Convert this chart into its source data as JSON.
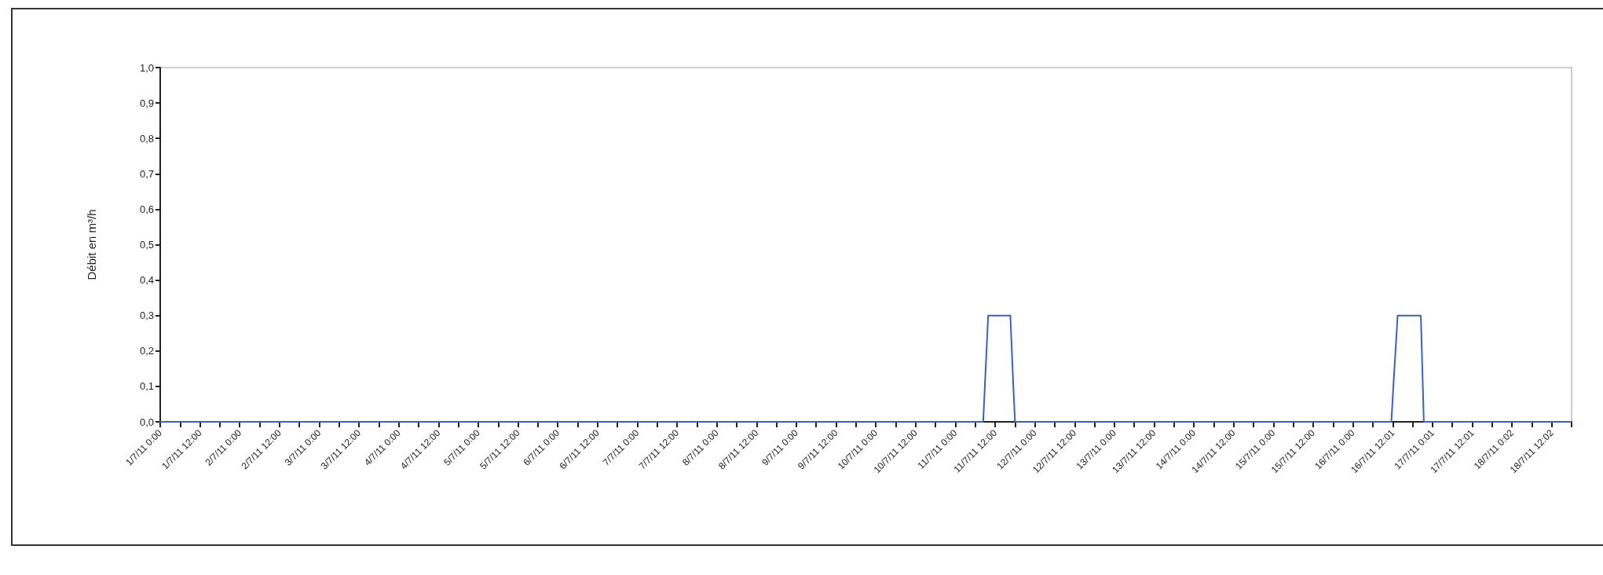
{
  "chart_data": {
    "type": "line",
    "ylabel": "Débit en m³/h",
    "x": [
      "--07-01T00:00",
      "--07-11T08:24",
      "--07-11T09:54",
      "--07-11T16:36",
      "--07-11T17:30",
      "--07-11T18:00",
      "--07-16T11:36",
      "--07-16T12:12",
      "--07-16T13:30",
      "--07-16T20:30",
      "--07-16T21:24",
      "--07-18T18:00"
    ],
    "series": [
      {
        "color": "#3a5fc8",
        "values": [
          0,
          0,
          0.3,
          0.3,
          0.1,
          0,
          0,
          0.1,
          0.3,
          0.3,
          0,
          0
        ]
      }
    ],
    "xlim": [
      "--07-01T00:00",
      "--07-18T18:00"
    ],
    "xticks": [
      {
        "value": "--07-01T00:00",
        "label": "1/7/11 0:00"
      },
      {
        "value": "--07-01T06:00",
        "label": null
      },
      {
        "value": "--07-01T12:00",
        "label": "1/7/11 12:00"
      },
      {
        "value": "--07-01T18:00",
        "label": null
      },
      {
        "value": "--07-02T00:00",
        "label": "2/7/11 0:00"
      },
      {
        "value": "--07-02T06:00",
        "label": null
      },
      {
        "value": "--07-02T12:00",
        "label": "2/7/11 12:00"
      },
      {
        "value": "--07-02T18:00",
        "label": null
      },
      {
        "value": "--07-03T00:00",
        "label": "3/7/11 0:00"
      },
      {
        "value": "--07-03T06:00",
        "label": null
      },
      {
        "value": "--07-03T12:00",
        "label": "3/7/11 12:00"
      },
      {
        "value": "--07-03T18:00",
        "label": null
      },
      {
        "value": "--07-04T00:00",
        "label": "4/7/11 0:00"
      },
      {
        "value": "--07-04T06:00",
        "label": null
      },
      {
        "value": "--07-04T12:00",
        "label": "4/7/11 12:00"
      },
      {
        "value": "--07-04T18:00",
        "label": null
      },
      {
        "value": "--07-05T00:00",
        "label": "5/7/11 0:00"
      },
      {
        "value": "--07-05T06:00",
        "label": null
      },
      {
        "value": "--07-05T12:00",
        "label": "5/7/11 12:00"
      },
      {
        "value": "--07-05T18:00",
        "label": null
      },
      {
        "value": "--07-06T00:00",
        "label": "6/7/11 0:00"
      },
      {
        "value": "--07-06T06:00",
        "label": null
      },
      {
        "value": "--07-06T12:00",
        "label": "6/7/11 12:00"
      },
      {
        "value": "--07-06T18:00",
        "label": null
      },
      {
        "value": "--07-07T00:00",
        "label": "7/7/11 0:00"
      },
      {
        "value": "--07-07T06:00",
        "label": null
      },
      {
        "value": "--07-07T12:00",
        "label": "7/7/11 12:00"
      },
      {
        "value": "--07-07T18:00",
        "label": null
      },
      {
        "value": "--07-08T00:00",
        "label": "8/7/11 0:00"
      },
      {
        "value": "--07-08T06:00",
        "label": null
      },
      {
        "value": "--07-08T12:00",
        "label": "8/7/11 12:00"
      },
      {
        "value": "--07-08T18:00",
        "label": null
      },
      {
        "value": "--07-09T00:00",
        "label": "9/7/11 0:00"
      },
      {
        "value": "--07-09T06:00",
        "label": null
      },
      {
        "value": "--07-09T12:00",
        "label": "9/7/11 12:00"
      },
      {
        "value": "--07-09T18:00",
        "label": null
      },
      {
        "value": "--07-10T00:00",
        "label": "10/7/11 0:00"
      },
      {
        "value": "--07-10T06:00",
        "label": null
      },
      {
        "value": "--07-10T12:00",
        "label": "10/7/11 12:00"
      },
      {
        "value": "--07-10T18:00",
        "label": null
      },
      {
        "value": "--07-11T00:00",
        "label": "11/7/11 0:00"
      },
      {
        "value": "--07-11T06:00",
        "label": null
      },
      {
        "value": "--07-11T12:00",
        "label": "11/7/11 12:00"
      },
      {
        "value": "--07-11T18:00",
        "label": null
      },
      {
        "value": "--07-12T00:00",
        "label": "12/7/11 0:00"
      },
      {
        "value": "--07-12T06:00",
        "label": null
      },
      {
        "value": "--07-12T12:00",
        "label": "12/7/11 12:00"
      },
      {
        "value": "--07-12T18:00",
        "label": null
      },
      {
        "value": "--07-13T00:00",
        "label": "13/7/11 0:00"
      },
      {
        "value": "--07-13T06:00",
        "label": null
      },
      {
        "value": "--07-13T12:00",
        "label": "13/7/11 12:00"
      },
      {
        "value": "--07-13T18:00",
        "label": null
      },
      {
        "value": "--07-14T00:00",
        "label": "14/7/11 0:00"
      },
      {
        "value": "--07-14T06:00",
        "label": null
      },
      {
        "value": "--07-14T12:00",
        "label": "14/7/11 12:00"
      },
      {
        "value": "--07-14T18:00",
        "label": null
      },
      {
        "value": "--07-15T00:00",
        "label": "15/7/11 0:00"
      },
      {
        "value": "--07-15T06:00",
        "label": null
      },
      {
        "value": "--07-15T12:00",
        "label": "15/7/11 12:00"
      },
      {
        "value": "--07-15T18:00",
        "label": null
      },
      {
        "value": "--07-16T00:00",
        "label": "16/7/11 0:00"
      },
      {
        "value": "--07-16T06:00",
        "label": null
      },
      {
        "value": "--07-16T12:01",
        "label": "16/7/11 12:01"
      },
      {
        "value": "--07-16T18:00",
        "label": null
      },
      {
        "value": "--07-17T00:01",
        "label": "17/7/11 0:01"
      },
      {
        "value": "--07-17T06:00",
        "label": null
      },
      {
        "value": "--07-17T12:01",
        "label": "17/7/11 12:01"
      },
      {
        "value": "--07-17T18:00",
        "label": null
      },
      {
        "value": "--07-18T00:02",
        "label": "18/7/11 0:02"
      },
      {
        "value": "--07-18T06:00",
        "label": null
      },
      {
        "value": "--07-18T12:02",
        "label": "18/7/11 12:02"
      },
      {
        "value": "--07-18T18:00",
        "label": null
      }
    ],
    "ylim": [
      0,
      1
    ],
    "yticks": [
      {
        "value": 0,
        "label": "0,0"
      },
      {
        "value": 0.1,
        "label": "0,1"
      },
      {
        "value": 0.2,
        "label": "0,2"
      },
      {
        "value": 0.3,
        "label": "0,3"
      },
      {
        "value": 0.4,
        "label": "0,4"
      },
      {
        "value": 0.5,
        "label": "0,5"
      },
      {
        "value": 0.6,
        "label": "0,6"
      },
      {
        "value": 0.7,
        "label": "0,7"
      },
      {
        "value": 0.8,
        "label": "0,8"
      },
      {
        "value": 0.9,
        "label": "0,9"
      },
      {
        "value": 1,
        "label": "1,0"
      }
    ],
    "grid": false,
    "marker": "none",
    "line_style": "solid"
  }
}
